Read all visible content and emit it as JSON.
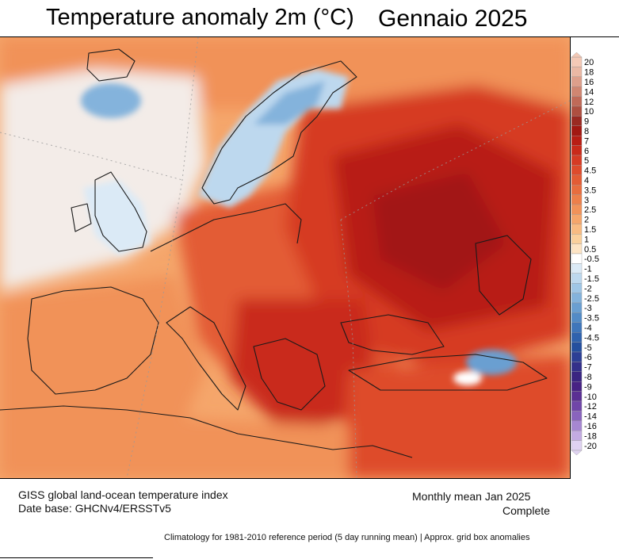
{
  "title": {
    "main": "Temperature anomaly 2m (°C)",
    "period": "Gennaio  2025"
  },
  "footer": {
    "source_line1": "GISS global land-ocean temperature index",
    "source_line2": "Date base: GHCNv4/ERSSTv5",
    "mean_line1": "Monthly mean Jan 2025",
    "mean_line2": "Complete",
    "climatology": "Climatology for 1981-2010 reference period (5 day running mean) | Approx. grid box anomalies"
  },
  "legend": {
    "ticks": [
      "20",
      "18",
      "16",
      "14",
      "12",
      "10",
      "9",
      "8",
      "7",
      "6",
      "5",
      "4.5",
      "4",
      "3.5",
      "3",
      "2.5",
      "2",
      "1.5",
      "1",
      "0.5",
      "-0.5",
      "-1",
      "-1.5",
      "-2",
      "-2.5",
      "-3",
      "-3.5",
      "-4",
      "-4.5",
      "-5",
      "-6",
      "-7",
      "-8",
      "-9",
      "-10",
      "-12",
      "-14",
      "-16",
      "-18",
      "-20"
    ],
    "colors": [
      "#f4c9b6",
      "#eab8a4",
      "#dd9f8b",
      "#d08671",
      "#c06a58",
      "#ae4f40",
      "#9a2a22",
      "#a21812",
      "#b81d14",
      "#c92a1a",
      "#d63b24",
      "#de4b2c",
      "#e35c34",
      "#e86d3e",
      "#ed7f4a",
      "#f19259",
      "#f5a66b",
      "#f8bb82",
      "#fad09c",
      "#fde4c4",
      "#ffffff",
      "#dbeaf6",
      "#bdd8ee",
      "#9fc6e6",
      "#84b3dc",
      "#6a9fd1",
      "#538bc6",
      "#3f76ba",
      "#2f62ad",
      "#244f9e",
      "#2c3f95",
      "#33308a",
      "#3a2581",
      "#472284",
      "#5a2f93",
      "#7046a8",
      "#8964bd",
      "#a687d1",
      "#c3abe2",
      "#dfd2f1"
    ]
  },
  "map_colors": {
    "base": "#f5a66b",
    "warm": "#ed7f4a",
    "hot": "#de4b2c",
    "hotter": "#c92a1a",
    "hottest": "#a21812",
    "neutral": "#eeeeee",
    "cold": "#9fc6e6",
    "colder": "#538bc6"
  }
}
